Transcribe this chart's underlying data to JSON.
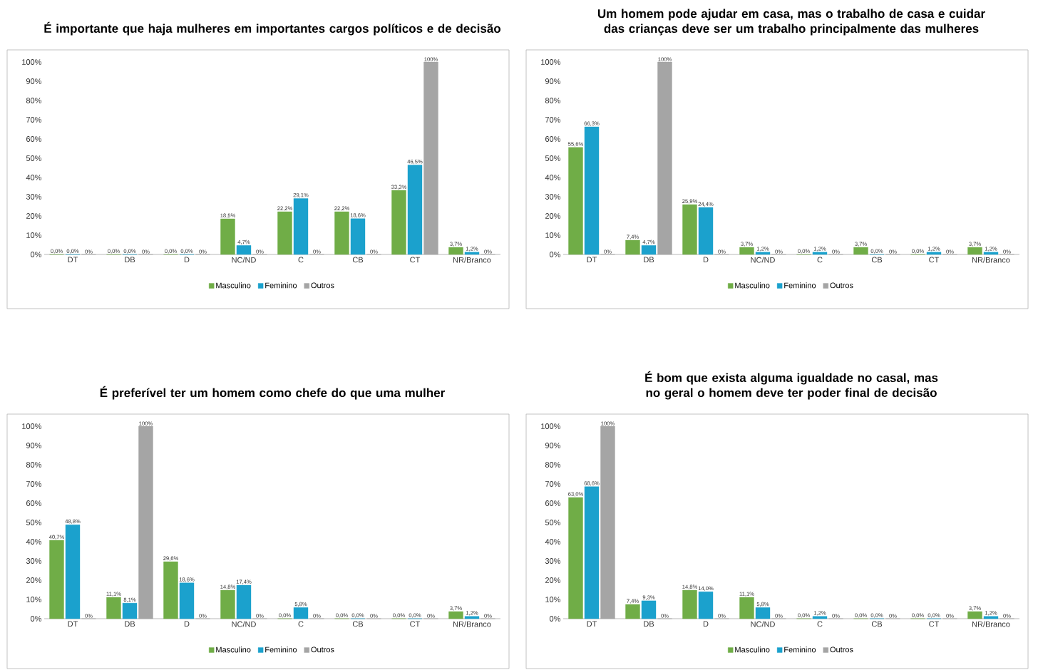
{
  "chart_data": [
    {
      "type": "bar",
      "title": "É importante que haja mulheres em importantes cargos políticos e de decisão",
      "categories": [
        "DT",
        "DB",
        "D",
        "NC/ND",
        "C",
        "CB",
        "CT",
        "NR/Branco"
      ],
      "series": [
        {
          "name": "Masculino",
          "color": "#70ad47",
          "values": [
            0,
            0,
            0,
            18.5,
            22.2,
            22.2,
            33.3,
            3.7
          ],
          "value_labels": [
            "0,0%",
            "0,0%",
            "0,0%",
            "18,5%",
            "22,2%",
            "22,2%",
            "33,3%",
            "3,7%"
          ]
        },
        {
          "name": "Feminino",
          "color": "#1ba1cd",
          "values": [
            0,
            0,
            0,
            4.7,
            29.1,
            18.6,
            46.5,
            1.2
          ],
          "value_labels": [
            "0,0%",
            "0,0%",
            "0,0%",
            "4,7%",
            "29,1%",
            "18,6%",
            "46,5%",
            "1,2%"
          ]
        },
        {
          "name": "Outros",
          "color": "#a5a5a5",
          "values": [
            0,
            0,
            0,
            0,
            0,
            0,
            100,
            0
          ],
          "value_labels": [
            "0%",
            "0%",
            "0%",
            "0%",
            "0%",
            "0%",
            "100%",
            "0%"
          ]
        }
      ],
      "ylim": [
        0,
        100
      ],
      "yticks": [
        {
          "value": 0,
          "label": "0%"
        },
        {
          "value": 10,
          "label": "10%"
        },
        {
          "value": 20,
          "label": "20%"
        },
        {
          "value": 30,
          "label": "30%"
        },
        {
          "value": 40,
          "label": "40%"
        },
        {
          "value": 50,
          "label": "50%"
        },
        {
          "value": 60,
          "label": "60%"
        },
        {
          "value": 70,
          "label": "70%"
        },
        {
          "value": 80,
          "label": "80%"
        },
        {
          "value": 90,
          "label": "90%"
        },
        {
          "value": 100,
          "label": "100%"
        }
      ],
      "legend": "bottom"
    },
    {
      "type": "bar",
      "title": "Um homem pode ajudar em casa, mas o trabalho de casa e cuidar das crianças deve ser um trabalho principalmente das mulheres",
      "categories": [
        "DT",
        "DB",
        "D",
        "NC/ND",
        "C",
        "CB",
        "CT",
        "NR/Branco"
      ],
      "series": [
        {
          "name": "Masculino",
          "color": "#70ad47",
          "values": [
            55.6,
            7.4,
            25.9,
            3.7,
            0,
            3.7,
            0,
            3.7
          ],
          "value_labels": [
            "55,6%",
            "7,4%",
            "25,9%",
            "3,7%",
            "0,0%",
            "3,7%",
            "0,0%",
            "3,7%"
          ]
        },
        {
          "name": "Feminino",
          "color": "#1ba1cd",
          "values": [
            66.3,
            4.7,
            24.4,
            1.2,
            1.2,
            0,
            1.2,
            1.2
          ],
          "value_labels": [
            "66,3%",
            "4,7%",
            "24,4%",
            "1,2%",
            "1,2%",
            "0,0%",
            "1,2%",
            "1,2%"
          ]
        },
        {
          "name": "Outros",
          "color": "#a5a5a5",
          "values": [
            0,
            100,
            0,
            0,
            0,
            0,
            0,
            0
          ],
          "value_labels": [
            "0%",
            "100%",
            "0%",
            "0%",
            "0%",
            "0%",
            "0%",
            "0%"
          ]
        }
      ],
      "ylim": [
        0,
        100
      ],
      "yticks": [
        {
          "value": 0,
          "label": "0%"
        },
        {
          "value": 10,
          "label": "10%"
        },
        {
          "value": 20,
          "label": "20%"
        },
        {
          "value": 30,
          "label": "30%"
        },
        {
          "value": 40,
          "label": "40%"
        },
        {
          "value": 50,
          "label": "50%"
        },
        {
          "value": 60,
          "label": "60%"
        },
        {
          "value": 70,
          "label": "70%"
        },
        {
          "value": 80,
          "label": "80%"
        },
        {
          "value": 90,
          "label": "90%"
        },
        {
          "value": 100,
          "label": "100%"
        }
      ],
      "legend": "bottom"
    },
    {
      "type": "bar",
      "title": "É preferível ter um homem como chefe do que uma mulher",
      "categories": [
        "DT",
        "DB",
        "D",
        "NC/ND",
        "C",
        "CB",
        "CT",
        "NR/Branco"
      ],
      "series": [
        {
          "name": "Masculino",
          "color": "#70ad47",
          "values": [
            40.7,
            11.1,
            29.6,
            14.8,
            0,
            0,
            0,
            3.7
          ],
          "value_labels": [
            "40,7%",
            "11,1%",
            "29,6%",
            "14,8%",
            "0,0%",
            "0,0%",
            "0,0%",
            "3,7%"
          ]
        },
        {
          "name": "Feminino",
          "color": "#1ba1cd",
          "values": [
            48.8,
            8.1,
            18.6,
            17.4,
            5.8,
            0,
            0,
            1.2
          ],
          "value_labels": [
            "48,8%",
            "8,1%",
            "18,6%",
            "17,4%",
            "5,8%",
            "0,0%",
            "0,0%",
            "1,2%"
          ]
        },
        {
          "name": "Outros",
          "color": "#a5a5a5",
          "values": [
            0,
            100,
            0,
            0,
            0,
            0,
            0,
            0
          ],
          "value_labels": [
            "0%",
            "100%",
            "0%",
            "0%",
            "0%",
            "0%",
            "0%",
            "0%"
          ]
        }
      ],
      "ylim": [
        0,
        100
      ],
      "yticks": [
        {
          "value": 0,
          "label": "0%"
        },
        {
          "value": 10,
          "label": "10%"
        },
        {
          "value": 20,
          "label": "20%"
        },
        {
          "value": 30,
          "label": "30%"
        },
        {
          "value": 40,
          "label": "40%"
        },
        {
          "value": 50,
          "label": "50%"
        },
        {
          "value": 60,
          "label": "60%"
        },
        {
          "value": 70,
          "label": "70%"
        },
        {
          "value": 80,
          "label": "80%"
        },
        {
          "value": 90,
          "label": "90%"
        },
        {
          "value": 100,
          "label": "100%"
        }
      ],
      "legend": "bottom"
    },
    {
      "type": "bar",
      "title": "É bom que exista alguma igualdade no casal, mas no geral o homem deve ter poder final de decisão",
      "categories": [
        "DT",
        "DB",
        "D",
        "NC/ND",
        "C",
        "CB",
        "CT",
        "NR/Branco"
      ],
      "series": [
        {
          "name": "Masculino",
          "color": "#70ad47",
          "values": [
            63.0,
            7.4,
            14.8,
            11.1,
            0,
            0,
            0,
            3.7
          ],
          "value_labels": [
            "63,0%",
            "7,4%",
            "14,8%",
            "11,1%",
            "0,0%",
            "0,0%",
            "0,0%",
            "3,7%"
          ]
        },
        {
          "name": "Feminino",
          "color": "#1ba1cd",
          "values": [
            68.6,
            9.3,
            14.0,
            5.8,
            1.2,
            0,
            0,
            1.2
          ],
          "value_labels": [
            "68,6%",
            "9,3%",
            "14,0%",
            "5,8%",
            "1,2%",
            "0,0%",
            "0,0%",
            "1,2%"
          ]
        },
        {
          "name": "Outros",
          "color": "#a5a5a5",
          "values": [
            100,
            0,
            0,
            0,
            0,
            0,
            0,
            0
          ],
          "value_labels": [
            "100%",
            "0%",
            "0%",
            "0%",
            "0%",
            "0%",
            "0%",
            "0%"
          ]
        }
      ],
      "ylim": [
        0,
        100
      ],
      "yticks": [
        {
          "value": 0,
          "label": "0%"
        },
        {
          "value": 10,
          "label": "10%"
        },
        {
          "value": 20,
          "label": "20%"
        },
        {
          "value": 30,
          "label": "30%"
        },
        {
          "value": 40,
          "label": "40%"
        },
        {
          "value": 50,
          "label": "50%"
        },
        {
          "value": 60,
          "label": "60%"
        },
        {
          "value": 70,
          "label": "70%"
        },
        {
          "value": 80,
          "label": "80%"
        },
        {
          "value": 90,
          "label": "90%"
        },
        {
          "value": 100,
          "label": "100%"
        }
      ],
      "legend": "bottom"
    }
  ]
}
